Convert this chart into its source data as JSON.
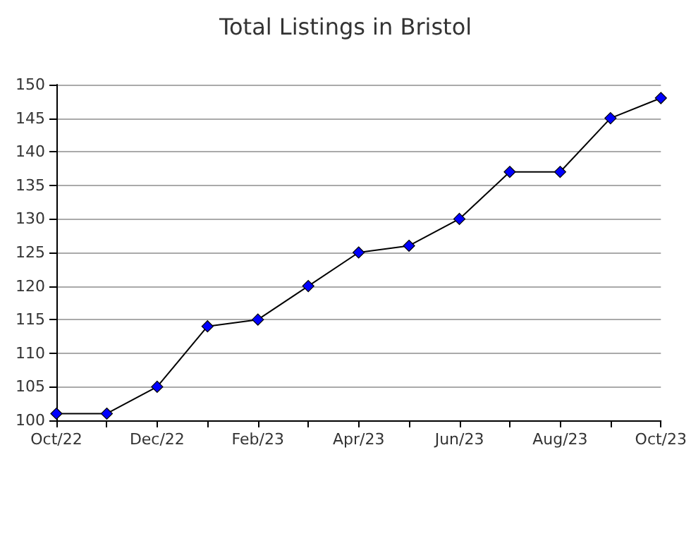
{
  "chart_data": {
    "type": "line",
    "title": "Total Listings in Bristol",
    "categories": [
      "Oct/22",
      null,
      "Dec/22",
      null,
      "Feb/23",
      null,
      "Apr/23",
      null,
      "Jun/23",
      null,
      "Aug/23",
      null,
      "Oct/23"
    ],
    "series": [
      {
        "color": "#0000ff",
        "values": [
          101,
          101,
          105,
          114,
          115,
          120,
          125,
          126,
          130,
          137,
          137,
          145,
          148
        ]
      }
    ],
    "ylim": [
      100,
      150
    ],
    "yticks": [
      100,
      105,
      110,
      115,
      120,
      125,
      130,
      135,
      140,
      145,
      150
    ],
    "grid": "y",
    "marker": "diamond",
    "line_style": "solid"
  }
}
